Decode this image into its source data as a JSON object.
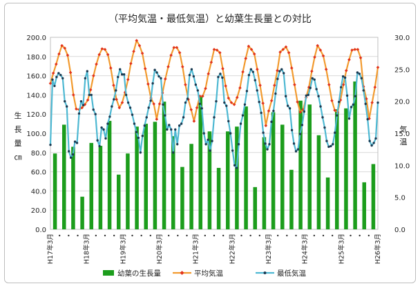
{
  "chart_data": {
    "type": "bar+line",
    "title": "（平均気温・最低気温）と幼葉生長量との対比",
    "ylabel_left": "生長量㎝",
    "ylabel_right": "気温",
    "ylim_left": [
      0,
      200
    ],
    "ylim_right": [
      0,
      30
    ],
    "yticks_left": [
      "0.0",
      "20.0",
      "40.0",
      "60.0",
      "80.0",
      "100.0",
      "120.0",
      "140.0",
      "160.0",
      "180.0",
      "200.0"
    ],
    "yticks_right": [
      "0.0",
      "5.0",
      "10.0",
      "15.0",
      "20.0",
      "25.0",
      "30.0"
    ],
    "x_tick_labels": [
      "H17年3月",
      "H18年3月",
      "H19年3月",
      "H20年3月",
      "H21年3月",
      "H22年3月",
      "H23年3月",
      "H24年3月",
      "H25年3月",
      "H26年3月"
    ],
    "grid": true,
    "legend_position": "bottom",
    "colors": {
      "bar": "#1c9d1c",
      "avg": "#e2331c",
      "avg_line": "#f29a2e",
      "min": "#4db8d2",
      "min_marker": "#1a3a52"
    },
    "series": [
      {
        "name": "幼葉の生長量",
        "axis": "left",
        "kind": "bar",
        "values": [
          79,
          109,
          86,
          34,
          90,
          87,
          113,
          57,
          79,
          107,
          110,
          112,
          133,
          97,
          65,
          89,
          138,
          102,
          64,
          102,
          107,
          128,
          44,
          96,
          122,
          109,
          62,
          134,
          130,
          98,
          54,
          125,
          126,
          154,
          49,
          68
        ]
      },
      {
        "name": "平均気温",
        "axis": "right",
        "kind": "line",
        "values": [
          22.8,
          24.4,
          25.8,
          27.4,
          28.7,
          28.3,
          27.2,
          24.5,
          21.0,
          18.8,
          18.7,
          19.0,
          19.5,
          20.2,
          21.8,
          24.0,
          25.8,
          27.3,
          28.2,
          28.1,
          27.3,
          25.2,
          22.5,
          20.3,
          19.0,
          19.8,
          21.4,
          23.4,
          25.9,
          27.8,
          29.5,
          28.7,
          27.5,
          25.1,
          22.7,
          20.5,
          19.6,
          17.2,
          19.6,
          21.3,
          23.5,
          25.4,
          27.2,
          28.4,
          28.4,
          27.6,
          25.4,
          22.6,
          20.3,
          18.7,
          16.9,
          19.0,
          20.8,
          20.8,
          22.0,
          24.3,
          26.1,
          28.1,
          28.0,
          27.6,
          25.1,
          22.4,
          20.5,
          19.8,
          19.5,
          20.6,
          22.1,
          24.6,
          26.7,
          28.6,
          28.1,
          27.4,
          25.0,
          22.5,
          19.7,
          16.2,
          18.5,
          20.1,
          22.5,
          24.8,
          27.7,
          28.1,
          28.5,
          27.6,
          25.2,
          22.6,
          19.9,
          18.3,
          18.7,
          20.6,
          22.2,
          24.7,
          26.9,
          28.7,
          28.0,
          27.1,
          25.0,
          22.6,
          20.1,
          18.6,
          18.3,
          20.2,
          22.6,
          24.8,
          26.5,
          28.0,
          28.1,
          28.1,
          26.8,
          22.3,
          20.4,
          17.3,
          19.8,
          22.2,
          25.3
        ]
      },
      {
        "name": "最低気温",
        "axis": "right",
        "kind": "line",
        "values": [
          13.2,
          23.4,
          22.4,
          23.8,
          24.4,
          24.1,
          23.6,
          20.0,
          19.2,
          12.2,
          11.2,
          11.7,
          13.7,
          13.5,
          18.1,
          20.0,
          19.4,
          23.6,
          24.7,
          21.0,
          21.0,
          18.7,
          18.0,
          13.9,
          13.0,
          15.9,
          15.6,
          14.2,
          16.5,
          17.6,
          19.2,
          20.3,
          21.7,
          23.8,
          25.0,
          24.2,
          24.2,
          21.0,
          19.8,
          19.0,
          17.9,
          16.5,
          15.2,
          14.3,
          12.0,
          14.6,
          16.2,
          17.5,
          19.0,
          20.1,
          22.8,
          24.9,
          24.5,
          23.9,
          23.6,
          19.5,
          17.8,
          15.6,
          16.3,
          15.6,
          12.0,
          15.6,
          13.3,
          16.2,
          16.5,
          17.5,
          19.8,
          20.4,
          24.1,
          25.0,
          23.9,
          22.6,
          21.7,
          19.6,
          18.9,
          15.0,
          13.3,
          14.0,
          12.3,
          13.8,
          17.5,
          20.0,
          23.8,
          24.3,
          23.7,
          19.8,
          19.3,
          16.9,
          15.0,
          12.3,
          10.0,
          9.6,
          13.3,
          16.5,
          17.8,
          19.5,
          21.6,
          24.1,
          25.0,
          24.6,
          23.3,
          21.7,
          19.9,
          18.2,
          15.1,
          13.4,
          12.5,
          13.3,
          16.8,
          18.5,
          21.2,
          23.5,
          24.7,
          25.0,
          24.4,
          20.8,
          19.3,
          18.9,
          15.5,
          13.4,
          12.2,
          12.5,
          14.9,
          16.3,
          18.4,
          20.9,
          21.0,
          22.1,
          23.6,
          23.4,
          21.9,
          20.8,
          19.2,
          17.5,
          15.9,
          13.8,
          12.9,
          13.0,
          13.3,
          15.1,
          17.8,
          19.9,
          22.2,
          23.9,
          23.7,
          20.9,
          17.3,
          19.1,
          19.5,
          20.8,
          24.5,
          24.3,
          23.6,
          21.7,
          19.6,
          17.2,
          13.8,
          13.1,
          13.5,
          14.2,
          19.8
        ]
      }
    ]
  }
}
